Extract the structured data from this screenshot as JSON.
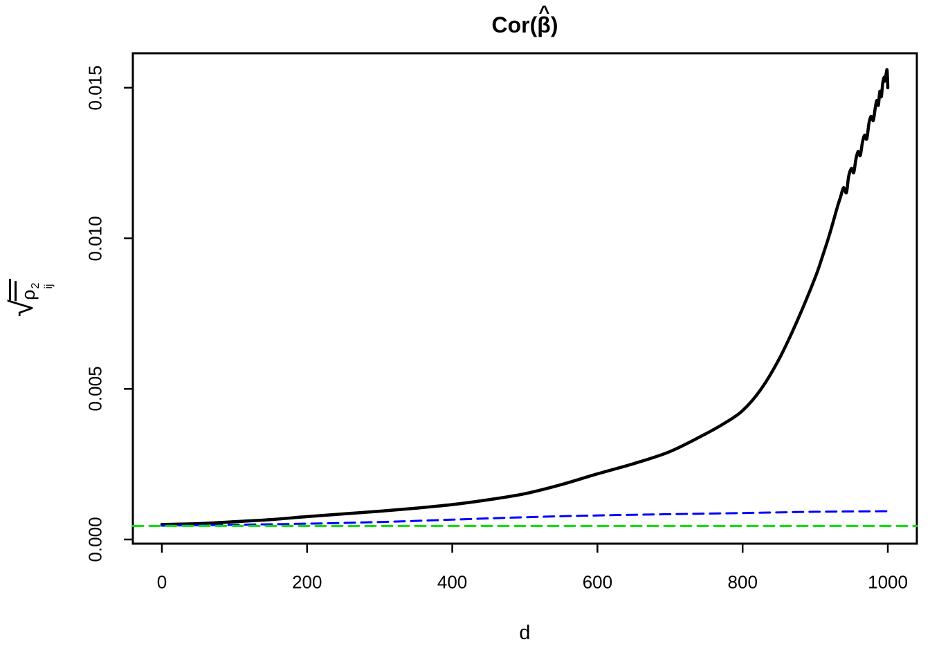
{
  "title": {
    "prefix": "Cor(",
    "symbol": "β",
    "hat": "^",
    "suffix": ")"
  },
  "xlabel": "d",
  "ylabel": {
    "radical": "√",
    "rho": "ρ",
    "sup": "2",
    "sub": "ij"
  },
  "colors": {
    "solid_curve": "#000000",
    "dashed_blue": "#0000ff",
    "dashed_green": "#00dd00",
    "axis": "#000000",
    "background": "#ffffff"
  },
  "chart_data": {
    "type": "line",
    "title": "Cor(beta-hat)",
    "xlabel": "d",
    "ylabel": "sqrt(mean(rho_ij^2))",
    "xlim": [
      -40,
      1040
    ],
    "ylim": [
      -0.000138,
      0.016145
    ],
    "grid": false,
    "legend": "none",
    "xticks": {
      "values": [
        0,
        200,
        400,
        600,
        800,
        1000
      ],
      "labels": [
        "0",
        "200",
        "400",
        "600",
        "800",
        "1000"
      ]
    },
    "yticks": {
      "values": [
        0,
        0.005,
        0.01,
        0.015
      ],
      "labels": [
        "0.000",
        "0.005",
        "0.010",
        "0.015"
      ]
    },
    "series": [
      {
        "name": "black-solid-curve",
        "color": "#000000",
        "style": "solid",
        "width": 4.5,
        "points": [
          [
            0,
            0.0005
          ],
          [
            25,
            0.00051
          ],
          [
            50,
            0.000525
          ],
          [
            75,
            0.000555
          ],
          [
            100,
            0.00059
          ],
          [
            150,
            0.00066
          ],
          [
            200,
            0.00076
          ],
          [
            250,
            0.00085
          ],
          [
            300,
            0.00094
          ],
          [
            350,
            0.00104
          ],
          [
            400,
            0.00116
          ],
          [
            450,
            0.00132
          ],
          [
            500,
            0.00152
          ],
          [
            550,
            0.00182
          ],
          [
            600,
            0.00218
          ],
          [
            650,
            0.00252
          ],
          [
            700,
            0.00292
          ],
          [
            750,
            0.00352
          ],
          [
            775,
            0.00386
          ],
          [
            800,
            0.00428
          ],
          [
            825,
            0.00498
          ],
          [
            850,
            0.00598
          ],
          [
            875,
            0.00725
          ],
          [
            900,
            0.0087
          ],
          [
            910,
            0.0094
          ],
          [
            920,
            0.01015
          ],
          [
            930,
            0.011
          ],
          [
            935,
            0.01138
          ],
          [
            939,
            0.01168
          ],
          [
            943,
            0.01152
          ],
          [
            946,
            0.01205
          ],
          [
            950,
            0.01232
          ],
          [
            953,
            0.01218
          ],
          [
            956,
            0.01262
          ],
          [
            959,
            0.01288
          ],
          [
            962,
            0.01275
          ],
          [
            965,
            0.01318
          ],
          [
            968,
            0.01342
          ],
          [
            971,
            0.0133
          ],
          [
            974,
            0.01382
          ],
          [
            977,
            0.01405
          ],
          [
            980,
            0.01392
          ],
          [
            983,
            0.01438
          ],
          [
            985,
            0.01458
          ],
          [
            987,
            0.01442
          ],
          [
            989,
            0.01488
          ],
          [
            991,
            0.0147
          ],
          [
            993,
            0.01515
          ],
          [
            995,
            0.01535
          ],
          [
            996,
            0.01522
          ],
          [
            998,
            0.0155
          ],
          [
            999,
            0.01557
          ],
          [
            1000,
            0.015
          ]
        ]
      },
      {
        "name": "blue-dashed-line",
        "color": "#0000ff",
        "style": "dashed",
        "width": 3,
        "points": [
          [
            0,
            0.00046
          ],
          [
            100,
            0.00049
          ],
          [
            200,
            0.000525
          ],
          [
            300,
            0.00058
          ],
          [
            400,
            0.00066
          ],
          [
            500,
            0.00074
          ],
          [
            600,
            0.0008
          ],
          [
            700,
            0.00084
          ],
          [
            800,
            0.00088
          ],
          [
            900,
            0.00092
          ],
          [
            1000,
            0.00094
          ]
        ]
      },
      {
        "name": "green-dashed-line",
        "color": "#00dd00",
        "style": "dashed",
        "width": 3,
        "points": [
          [
            -40,
            0.00045
          ],
          [
            1040,
            0.00045
          ]
        ]
      }
    ]
  }
}
